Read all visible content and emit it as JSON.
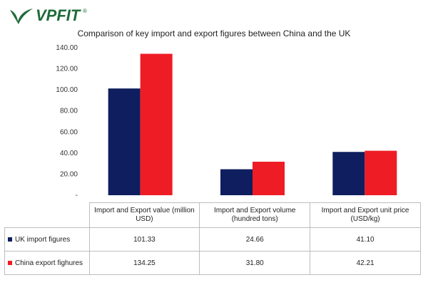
{
  "logo": {
    "text": "VPFIT",
    "mark": "®"
  },
  "chart_data": {
    "type": "bar",
    "title": "Comparison of key import and export figures between China and the UK",
    "categories": [
      "Import and Export value (million USD)",
      "Import and Export volume (hundred tons)",
      "Import and Export unit price (USD/kg)"
    ],
    "category_lines": [
      [
        "Import and Export value (million",
        "USD)"
      ],
      [
        "Import and Export volume",
        "(hundred tons)"
      ],
      [
        "Import and Export unit price",
        "(USD/kg)"
      ]
    ],
    "series": [
      {
        "name": "UK import figures",
        "color": "#0f1e5e",
        "values": [
          101.33,
          24.66,
          41.1
        ],
        "labels": [
          "101.33",
          "24.66",
          "41.10"
        ]
      },
      {
        "name": "China export fighures",
        "color": "#ee1c25",
        "values": [
          134.25,
          31.8,
          42.21
        ],
        "labels": [
          "134.25",
          "31.80",
          "42.21"
        ]
      }
    ],
    "yticks": [
      "-",
      "20.00",
      "40.00",
      "60.00",
      "80.00",
      "100.00",
      "120.00",
      "140.00"
    ],
    "ylim": [
      0,
      140
    ],
    "grid": false,
    "legend": "data table below chart"
  }
}
